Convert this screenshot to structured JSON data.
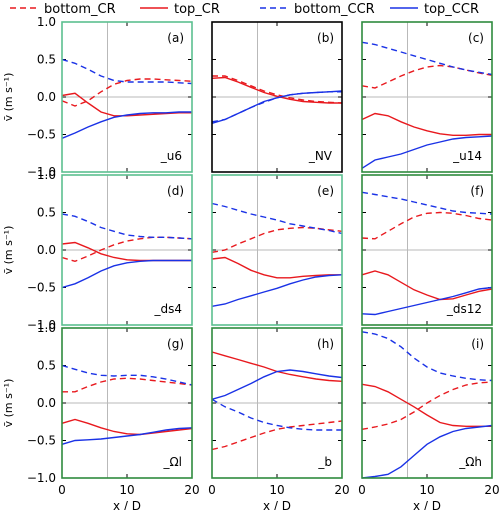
{
  "legend": [
    {
      "name": "bottom_CR",
      "color": "#e8191e",
      "style": "dashed"
    },
    {
      "name": "top_CR",
      "color": "#e8191e",
      "style": "solid"
    },
    {
      "name": "bottom_CCR",
      "color": "#1a32e6",
      "style": "dashed"
    },
    {
      "name": "top_CCR",
      "color": "#1a32e6",
      "style": "solid"
    }
  ],
  "axes": {
    "xlabel": "x / D",
    "ylabel": "v̄ (m s⁻¹)",
    "xlim": [
      0,
      20
    ],
    "ylim": [
      -1.0,
      1.0
    ],
    "xticks": [
      "0",
      "10",
      "20"
    ],
    "yticks": [
      "1.0",
      "0.5",
      "0.0",
      "−0.5",
      "−1.0"
    ],
    "vline_x": 7,
    "hline_y": 0
  },
  "chart_data": [
    {
      "type": "line",
      "panel": "(a)",
      "name": "_u6",
      "frame_color": "#5cc08f",
      "x": [
        0,
        2,
        4,
        6,
        8,
        10,
        12,
        14,
        16,
        18,
        20
      ],
      "series": [
        {
          "name": "bottom_CR",
          "values": [
            -0.05,
            -0.12,
            -0.05,
            0.07,
            0.17,
            0.22,
            0.24,
            0.24,
            0.23,
            0.22,
            0.21
          ]
        },
        {
          "name": "top_CR",
          "values": [
            0.02,
            0.05,
            -0.08,
            -0.2,
            -0.25,
            -0.25,
            -0.24,
            -0.23,
            -0.22,
            -0.21,
            -0.21
          ]
        },
        {
          "name": "bottom_CCR",
          "values": [
            0.5,
            0.45,
            0.37,
            0.28,
            0.22,
            0.2,
            0.2,
            0.2,
            0.2,
            0.19,
            0.18
          ]
        },
        {
          "name": "top_CCR",
          "values": [
            -0.55,
            -0.48,
            -0.4,
            -0.33,
            -0.27,
            -0.24,
            -0.22,
            -0.21,
            -0.21,
            -0.2,
            -0.2
          ]
        }
      ]
    },
    {
      "type": "line",
      "panel": "(b)",
      "name": "_NV",
      "frame_color": "#000000",
      "x": [
        0,
        2,
        4,
        6,
        8,
        10,
        12,
        14,
        16,
        18,
        20
      ],
      "series": [
        {
          "name": "bottom_CR",
          "values": [
            0.28,
            0.28,
            0.22,
            0.15,
            0.08,
            0.03,
            -0.01,
            -0.04,
            -0.06,
            -0.07,
            -0.08
          ]
        },
        {
          "name": "top_CR",
          "values": [
            0.25,
            0.26,
            0.2,
            0.13,
            0.06,
            0.01,
            -0.03,
            -0.06,
            -0.07,
            -0.08,
            -0.08
          ]
        },
        {
          "name": "bottom_CCR",
          "values": [
            -0.33,
            -0.3,
            -0.22,
            -0.14,
            -0.07,
            -0.01,
            0.03,
            0.05,
            0.06,
            0.07,
            0.07
          ]
        },
        {
          "name": "top_CCR",
          "values": [
            -0.35,
            -0.3,
            -0.22,
            -0.14,
            -0.06,
            -0.01,
            0.03,
            0.05,
            0.06,
            0.07,
            0.08
          ]
        }
      ]
    },
    {
      "type": "line",
      "panel": "(c)",
      "name": "_u14",
      "frame_color": "#2e8b3e",
      "x": [
        0,
        2,
        4,
        6,
        8,
        10,
        12,
        14,
        16,
        18,
        20
      ],
      "series": [
        {
          "name": "bottom_CR",
          "values": [
            0.15,
            0.12,
            0.2,
            0.28,
            0.35,
            0.4,
            0.42,
            0.4,
            0.36,
            0.32,
            0.29
          ]
        },
        {
          "name": "top_CR",
          "values": [
            -0.3,
            -0.22,
            -0.25,
            -0.33,
            -0.4,
            -0.45,
            -0.49,
            -0.51,
            -0.51,
            -0.5,
            -0.5
          ]
        },
        {
          "name": "bottom_CCR",
          "values": [
            0.73,
            0.7,
            0.65,
            0.6,
            0.55,
            0.5,
            0.45,
            0.4,
            0.36,
            0.33,
            0.3
          ]
        },
        {
          "name": "top_CCR",
          "values": [
            -0.95,
            -0.84,
            -0.8,
            -0.76,
            -0.7,
            -0.64,
            -0.6,
            -0.56,
            -0.54,
            -0.53,
            -0.52
          ]
        }
      ]
    },
    {
      "type": "line",
      "panel": "(d)",
      "name": "_ds4",
      "frame_color": "#5cc08f",
      "x": [
        0,
        2,
        4,
        6,
        8,
        10,
        12,
        14,
        16,
        18,
        20
      ],
      "series": [
        {
          "name": "bottom_CR",
          "values": [
            -0.1,
            -0.15,
            -0.08,
            0.0,
            0.07,
            0.12,
            0.15,
            0.17,
            0.17,
            0.16,
            0.15
          ]
        },
        {
          "name": "top_CR",
          "values": [
            0.08,
            0.1,
            0.03,
            -0.05,
            -0.1,
            -0.13,
            -0.14,
            -0.14,
            -0.14,
            -0.14,
            -0.14
          ]
        },
        {
          "name": "bottom_CCR",
          "values": [
            0.48,
            0.45,
            0.38,
            0.3,
            0.25,
            0.2,
            0.18,
            0.17,
            0.17,
            0.16,
            0.15
          ]
        },
        {
          "name": "top_CCR",
          "values": [
            -0.5,
            -0.45,
            -0.37,
            -0.28,
            -0.21,
            -0.17,
            -0.15,
            -0.14,
            -0.14,
            -0.14,
            -0.14
          ]
        }
      ]
    },
    {
      "type": "line",
      "panel": "(e)",
      "name": "",
      "frame_color": "#5cc08f",
      "x": [
        0,
        2,
        4,
        6,
        8,
        10,
        12,
        14,
        16,
        18,
        20
      ],
      "series": [
        {
          "name": "bottom_CR",
          "values": [
            -0.03,
            0.0,
            0.08,
            0.15,
            0.22,
            0.27,
            0.29,
            0.3,
            0.29,
            0.27,
            0.25
          ]
        },
        {
          "name": "top_CR",
          "values": [
            -0.12,
            -0.1,
            -0.18,
            -0.27,
            -0.33,
            -0.37,
            -0.37,
            -0.35,
            -0.34,
            -0.33,
            -0.33
          ]
        },
        {
          "name": "bottom_CCR",
          "values": [
            0.62,
            0.58,
            0.53,
            0.48,
            0.44,
            0.4,
            0.35,
            0.32,
            0.29,
            0.26,
            0.22
          ]
        },
        {
          "name": "top_CCR",
          "values": [
            -0.75,
            -0.72,
            -0.66,
            -0.61,
            -0.56,
            -0.51,
            -0.45,
            -0.4,
            -0.36,
            -0.34,
            -0.33
          ]
        }
      ]
    },
    {
      "type": "line",
      "panel": "(f)",
      "name": "_ds12",
      "frame_color": "#2e8b3e",
      "x": [
        0,
        2,
        4,
        6,
        8,
        10,
        12,
        14,
        16,
        18,
        20
      ],
      "series": [
        {
          "name": "bottom_CR",
          "values": [
            0.16,
            0.15,
            0.25,
            0.35,
            0.44,
            0.49,
            0.5,
            0.49,
            0.46,
            0.42,
            0.4
          ]
        },
        {
          "name": "top_CR",
          "values": [
            -0.33,
            -0.28,
            -0.33,
            -0.43,
            -0.53,
            -0.6,
            -0.66,
            -0.65,
            -0.6,
            -0.55,
            -0.52
          ]
        },
        {
          "name": "bottom_CCR",
          "values": [
            0.77,
            0.74,
            0.71,
            0.68,
            0.64,
            0.6,
            0.56,
            0.52,
            0.5,
            0.49,
            0.48
          ]
        },
        {
          "name": "top_CCR",
          "values": [
            -0.85,
            -0.86,
            -0.82,
            -0.78,
            -0.74,
            -0.7,
            -0.66,
            -0.62,
            -0.57,
            -0.52,
            -0.5
          ]
        }
      ]
    },
    {
      "type": "line",
      "panel": "(g)",
      "name": "_Ωl",
      "frame_color": "#2e8b3e",
      "x": [
        0,
        2,
        4,
        6,
        8,
        10,
        12,
        14,
        16,
        18,
        20
      ],
      "series": [
        {
          "name": "bottom_CR",
          "values": [
            0.15,
            0.15,
            0.22,
            0.28,
            0.32,
            0.33,
            0.32,
            0.3,
            0.28,
            0.26,
            0.24
          ]
        },
        {
          "name": "top_CR",
          "values": [
            -0.27,
            -0.22,
            -0.27,
            -0.33,
            -0.38,
            -0.41,
            -0.42,
            -0.4,
            -0.38,
            -0.36,
            -0.34
          ]
        },
        {
          "name": "bottom_CCR",
          "values": [
            0.5,
            0.45,
            0.4,
            0.37,
            0.36,
            0.37,
            0.37,
            0.35,
            0.32,
            0.28,
            0.24
          ]
        },
        {
          "name": "top_CCR",
          "values": [
            -0.55,
            -0.5,
            -0.49,
            -0.48,
            -0.46,
            -0.44,
            -0.42,
            -0.39,
            -0.36,
            -0.34,
            -0.33
          ]
        }
      ]
    },
    {
      "type": "line",
      "panel": "(h)",
      "name": "_b",
      "frame_color": "#2e8b3e",
      "x": [
        0,
        2,
        4,
        6,
        8,
        10,
        12,
        14,
        16,
        18,
        20
      ],
      "series": [
        {
          "name": "bottom_CR",
          "values": [
            -0.62,
            -0.58,
            -0.52,
            -0.46,
            -0.4,
            -0.35,
            -0.32,
            -0.3,
            -0.28,
            -0.26,
            -0.24
          ]
        },
        {
          "name": "top_CR",
          "values": [
            0.68,
            0.63,
            0.58,
            0.53,
            0.48,
            0.42,
            0.38,
            0.35,
            0.32,
            0.3,
            0.29
          ]
        },
        {
          "name": "bottom_CCR",
          "values": [
            0.05,
            -0.05,
            -0.12,
            -0.2,
            -0.26,
            -0.3,
            -0.33,
            -0.35,
            -0.36,
            -0.36,
            -0.36
          ]
        },
        {
          "name": "top_CCR",
          "values": [
            0.05,
            0.1,
            0.18,
            0.26,
            0.35,
            0.42,
            0.44,
            0.42,
            0.39,
            0.36,
            0.34
          ]
        }
      ]
    },
    {
      "type": "line",
      "panel": "(i)",
      "name": "_Ωh",
      "frame_color": "#2e8b3e",
      "x": [
        0,
        2,
        4,
        6,
        8,
        10,
        12,
        14,
        16,
        18,
        20
      ],
      "series": [
        {
          "name": "bottom_CR",
          "values": [
            -0.35,
            -0.32,
            -0.28,
            -0.22,
            -0.12,
            0.0,
            0.1,
            0.18,
            0.24,
            0.27,
            0.28
          ]
        },
        {
          "name": "top_CR",
          "values": [
            0.25,
            0.22,
            0.15,
            0.05,
            -0.05,
            -0.16,
            -0.26,
            -0.3,
            -0.31,
            -0.31,
            -0.31
          ]
        },
        {
          "name": "bottom_CCR",
          "values": [
            0.95,
            0.92,
            0.86,
            0.75,
            0.6,
            0.48,
            0.4,
            0.36,
            0.33,
            0.31,
            0.3
          ]
        },
        {
          "name": "top_CCR",
          "values": [
            -1.0,
            -0.98,
            -0.95,
            -0.85,
            -0.7,
            -0.55,
            -0.45,
            -0.38,
            -0.34,
            -0.32,
            -0.3
          ]
        }
      ]
    }
  ]
}
